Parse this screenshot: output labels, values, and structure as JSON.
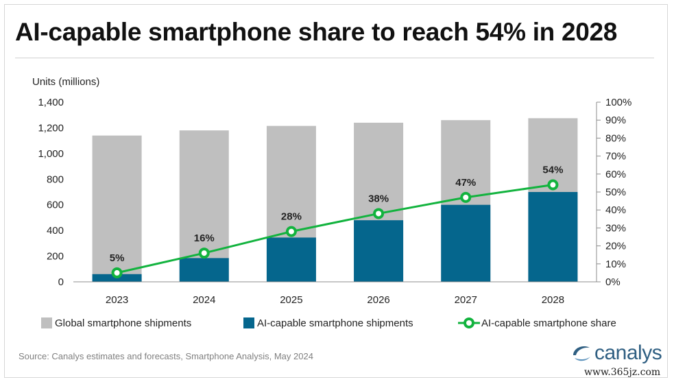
{
  "title": "AI-capable smartphone share to reach 54% in 2028",
  "source": "Source:  Canalys estimates and forecasts, Smartphone  Analysis, May 2024",
  "logo_text": "canalys",
  "watermark": "www.365jz.com",
  "colors": {
    "global": "#bfbfbf",
    "ai": "#05668d",
    "share_line": "#12b33e",
    "logo": "#2f5f82"
  },
  "chart_data": {
    "type": "bar",
    "title": "AI-capable smartphone share to reach 54% in 2028",
    "ylabel": "Units (millions)",
    "categories": [
      "2023",
      "2024",
      "2025",
      "2026",
      "2027",
      "2028"
    ],
    "y_left": {
      "min": 0,
      "max": 1400,
      "ticks": [
        "0",
        "200",
        "400",
        "600",
        "800",
        "1,000",
        "1,200",
        "1,400"
      ]
    },
    "y_right": {
      "min": 0,
      "max": 100,
      "ticks": [
        "0%",
        "10%",
        "20%",
        "30%",
        "40%",
        "50%",
        "60%",
        "70%",
        "80%",
        "90%",
        "100%"
      ]
    },
    "series": [
      {
        "name": "Global smartphone shipments",
        "kind": "bar",
        "axis": "left",
        "values": [
          1140,
          1180,
          1215,
          1240,
          1260,
          1275
        ]
      },
      {
        "name": "AI-capable smartphone shipments",
        "kind": "bar",
        "axis": "left",
        "values": [
          60,
          185,
          345,
          480,
          600,
          700
        ]
      },
      {
        "name": "AI-capable smartphone share",
        "kind": "line",
        "axis": "right",
        "values": [
          5,
          16,
          28,
          38,
          47,
          54
        ],
        "labels": [
          "5%",
          "16%",
          "28%",
          "38%",
          "47%",
          "54%"
        ]
      }
    ],
    "legend": "bottom",
    "grid": false
  }
}
